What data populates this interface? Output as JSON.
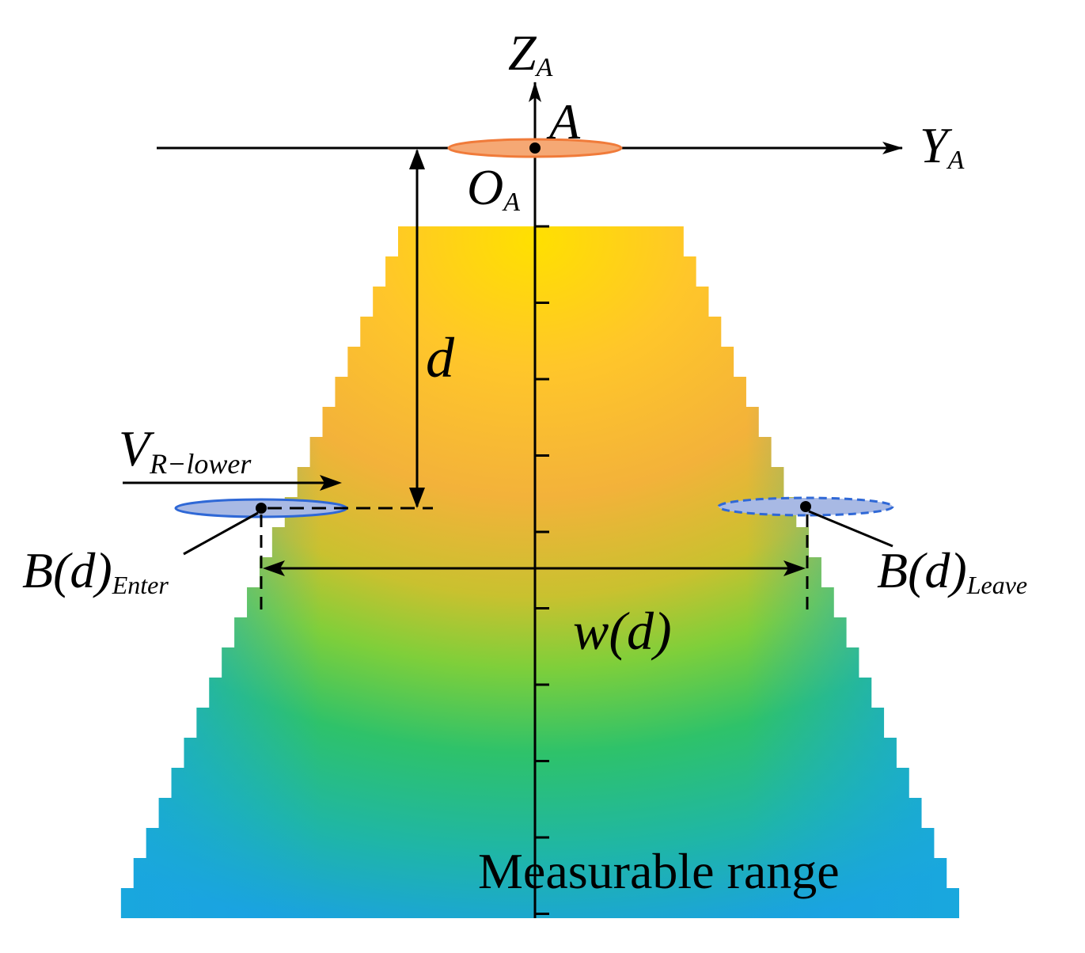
{
  "labels": {
    "z_axis": "Z",
    "z_axis_sub": "A",
    "y_axis": "Y",
    "y_axis_sub": "A",
    "point_a": "A",
    "origin": "O",
    "origin_sub": "A",
    "distance": "d",
    "velocity": "V",
    "velocity_sub": "R−lower",
    "enter_main": "B(d)",
    "enter_sub": "Enter",
    "leave_main": "B(d)",
    "leave_sub": "Leave",
    "width": "w(d)",
    "range": "Measurable range"
  },
  "colors": {
    "vehicle_a": "#f08a4b",
    "vehicle_a_fill": "#f5a874",
    "vehicle_b": "#3a6fd8",
    "vehicle_b_fill": "#9fb3e0",
    "field_top": "#ffe000",
    "field_mid": "#9acd32",
    "field_bottom": "#1ea6e0"
  }
}
